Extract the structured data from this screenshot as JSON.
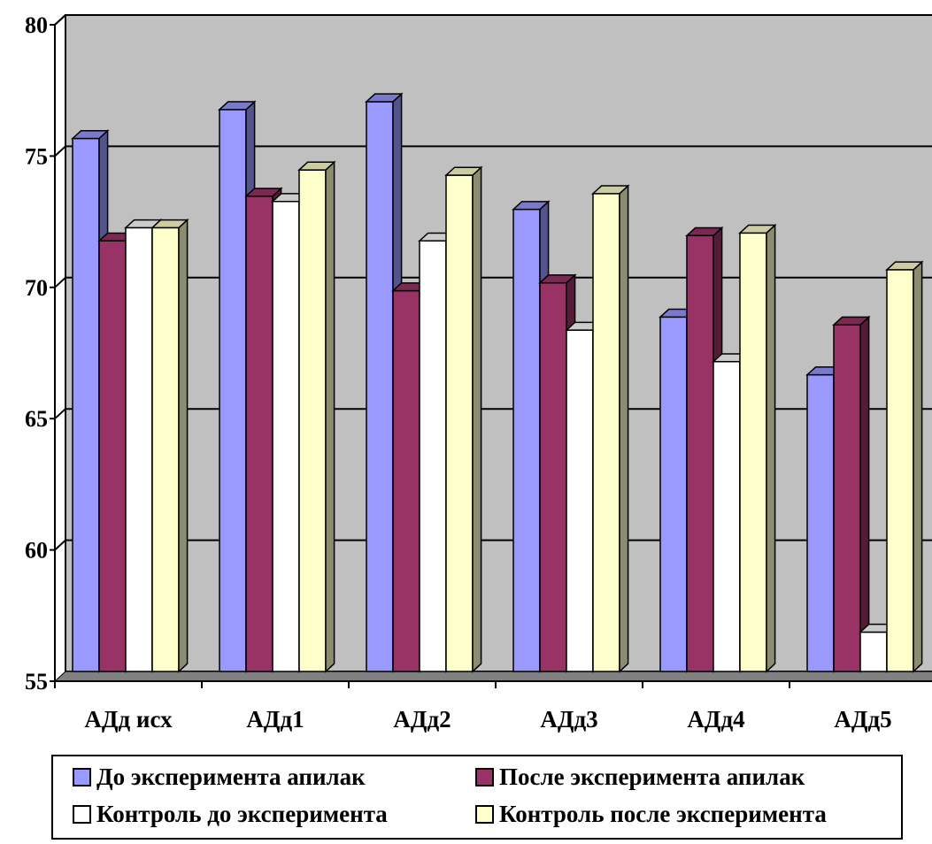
{
  "chart_data": {
    "type": "bar",
    "categories": [
      "АДд исх",
      "АДд1",
      "АДд2",
      "АДд3",
      "АДд4",
      "АДд5"
    ],
    "series": [
      {
        "name": "До эксперимента апилак",
        "values": [
          75.3,
          76.4,
          76.7,
          72.6,
          68.5,
          66.3
        ],
        "color": "#9999ff"
      },
      {
        "name": "После эксперимента апилак",
        "values": [
          71.4,
          73.1,
          69.5,
          69.8,
          71.6,
          68.2
        ],
        "color": "#993366"
      },
      {
        "name": "Контроль до эксперимента",
        "values": [
          71.9,
          72.9,
          71.4,
          68.0,
          66.8,
          56.5
        ],
        "color": "#ffffff"
      },
      {
        "name": "Контроль после эксперимента",
        "values": [
          71.9,
          74.1,
          73.9,
          73.2,
          71.7,
          70.3
        ],
        "color": "#ffffcc"
      }
    ],
    "yticks": [
      "55",
      "60",
      "65",
      "70",
      "75",
      "80"
    ],
    "ylim": [
      55,
      80
    ],
    "grid": true,
    "legend_position": "bottom"
  }
}
